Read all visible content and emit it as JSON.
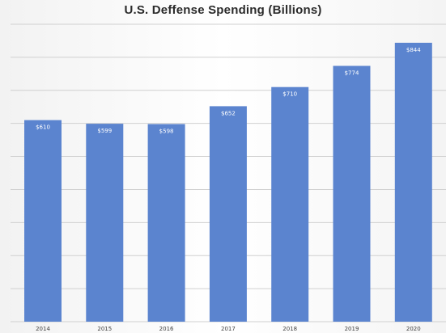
{
  "chart_data": {
    "type": "bar",
    "title": "U.S. Deffense Spending (Billions)",
    "categories": [
      "2014",
      "2015",
      "2016",
      "2017",
      "2018",
      "2019",
      "2020"
    ],
    "values": [
      610,
      599,
      598,
      652,
      710,
      774,
      844
    ],
    "data_labels": [
      "$610",
      "$599",
      "$598",
      "$652",
      "$710",
      "$774",
      "$844"
    ],
    "xlabel": "",
    "ylabel": "",
    "ylim": [
      0,
      900
    ],
    "grid": true,
    "legend": "none",
    "bar_color": "#5b84cf",
    "grid_color": "#d0d0d0"
  }
}
